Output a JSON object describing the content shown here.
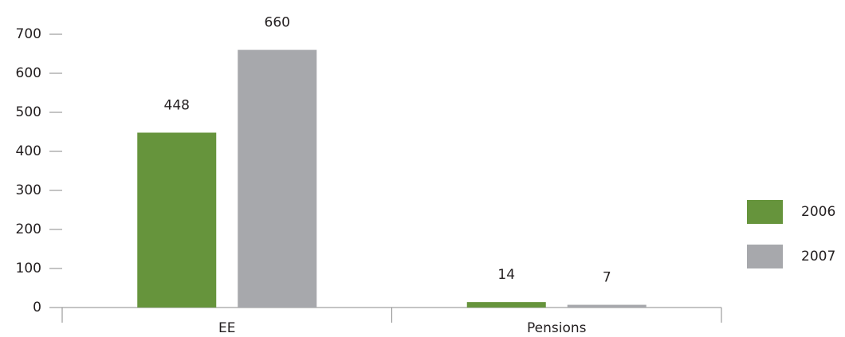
{
  "chart_data": {
    "type": "bar",
    "categories": [
      "EE",
      "Pensions"
    ],
    "series": [
      {
        "name": "2006",
        "color": "#66943c",
        "values": [
          448,
          14
        ]
      },
      {
        "name": "2007",
        "color": "#a7a8ac",
        "values": [
          660,
          7
        ]
      }
    ],
    "ylim": [
      0,
      700
    ],
    "yticks": [
      0,
      100,
      200,
      300,
      400,
      500,
      600,
      700
    ],
    "grid": false,
    "legend": "right"
  }
}
